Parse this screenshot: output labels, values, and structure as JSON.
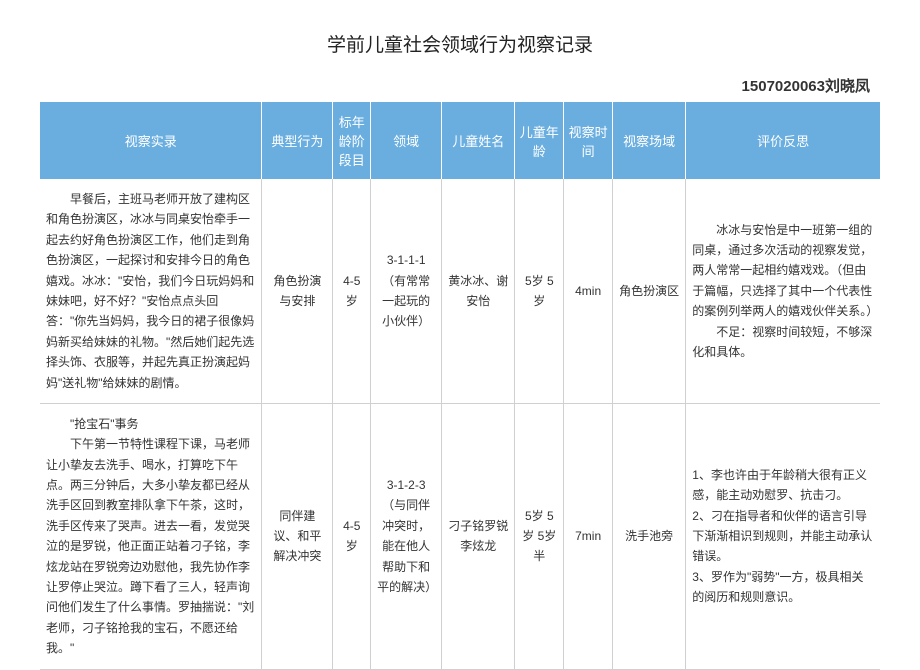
{
  "title": "学前儿童社会领域行为视察记录",
  "author_id": "1507020063",
  "author_name": "刘晓凤",
  "headers": {
    "observe": "视察实录",
    "behavior": "典型行为",
    "age_stage": "标年龄阶段目",
    "domain": "领域",
    "child_name": "儿童姓名",
    "child_age": "儿童年龄",
    "time": "视察时间",
    "place": "视察场域",
    "reflect": "评价反思"
  },
  "rows": [
    {
      "observe": "早餐后，主班马老师开放了建构区和角色扮演区，冰冰与同桌安怡牵手一起去约好角色扮演区工作，他们走到角色扮演区，一起探讨和安排今日的角色嬉戏。冰冰：\"安怡，我们今日玩妈妈和妹妹吧，好不好？\"安怡点点头回答：\"你先当妈妈，我今日的裙子很像妈妈新买给妹妹的礼物。\"然后她们起先选择头饰、衣服等，并起先真正扮演起妈妈\"送礼物\"给妹妹的剧情。",
      "behavior": "角色扮演与安排",
      "age_stage": "4-5岁",
      "domain": "3-1-1-1（有常常一起玩的小伙伴）",
      "child_name": "黄冰冰、谢安怡",
      "child_age": "5岁 5岁",
      "time": "4min",
      "place": "角色扮演区",
      "reflect_p1": "冰冰与安怡是中一班第一组的同桌，通过多次活动的视察发觉，两人常常一起相约嬉戏戏。（但由于篇幅，只选择了其中一个代表性的案例列举两人的嬉戏伙伴关系。）",
      "reflect_p2": "不足：视察时间较短，不够深化和具体。"
    },
    {
      "observe_title": "\"抢宝石\"事务",
      "observe": "下午第一节特性课程下课，马老师让小挚友去洗手、喝水，打算吃下午点。两三分钟后，大多小挚友都已经从洗手区回到教室排队拿下午茶，这时，洗手区传来了哭声。进去一看，发觉哭泣的是罗锐，他正面正站着刁子铭，李炫龙站在罗锐旁边劝慰他，我先协作李让罗停止哭泣。蹲下看了三人，轻声询问他们发生了什么事情。罗抽揣说：\"刘老师，刁子铭抢我的宝石，不愿还给我。\"",
      "behavior": "同伴建议、和平解决冲突",
      "age_stage": "4-5岁",
      "domain": "3-1-2-3（与同伴冲突时，能在他人帮助下和平的解决）",
      "child_name": "刁子铭罗锐李炫龙",
      "child_age": "5岁 5岁 5岁半",
      "time": "7min",
      "place": "洗手池旁",
      "reflect_l1": "1、李也许由于年龄稍大很有正义感，能主动劝慰罗、抗击刁。",
      "reflect_l2": "2、刁在指导者和伙伴的语言引导下渐渐相识到规则，并能主动承认错误。",
      "reflect_l3": "3、罗作为\"弱势\"一方，极具相关的阅历和规则意识。"
    }
  ]
}
